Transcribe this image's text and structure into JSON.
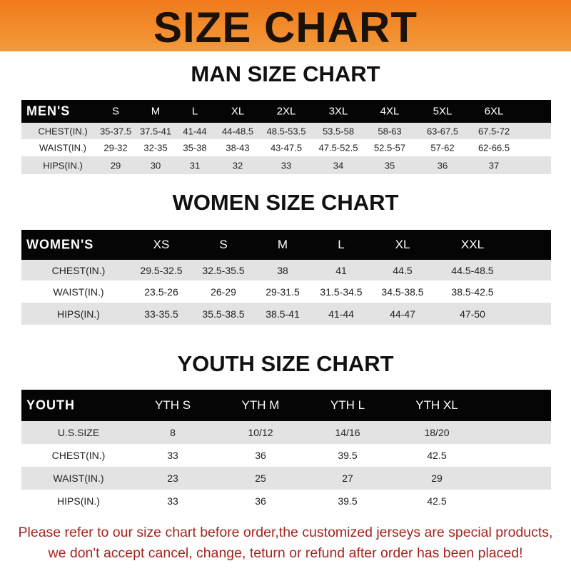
{
  "banner_title": "SIZE CHART",
  "colors": {
    "banner": "#f07a1c",
    "header_bar": "#050505",
    "row_gray": "#e3e3e3",
    "footer_text": "#a8231f"
  },
  "men": {
    "title": "MAN SIZE CHART",
    "header_label": "MEN'S",
    "sizes": [
      "S",
      "M",
      "L",
      "XL",
      "2XL",
      "3XL",
      "4XL",
      "5XL",
      "6XL"
    ],
    "rows": [
      {
        "label": "CHEST(IN.)",
        "values": [
          "35-37.5",
          "37.5-41",
          "41-44",
          "44-48.5",
          "48.5-53.5",
          "53.5-58",
          "58-63",
          "63-67.5",
          "67.5-72"
        ]
      },
      {
        "label": "WAIST(IN.)",
        "values": [
          "29-32",
          "32-35",
          "35-38",
          "38-43",
          "43-47.5",
          "47.5-52.5",
          "52.5-57",
          "57-62",
          "62-66.5"
        ]
      },
      {
        "label": "HIPS(IN.)",
        "values": [
          "29",
          "30",
          "31",
          "32",
          "33",
          "34",
          "35",
          "36",
          "37"
        ]
      }
    ]
  },
  "women": {
    "title": "WOMEN SIZE CHART",
    "header_label": "WOMEN'S",
    "sizes": [
      "XS",
      "S",
      "M",
      "L",
      "XL",
      "XXL"
    ],
    "rows": [
      {
        "label": "CHEST(IN.)",
        "values": [
          "29.5-32.5",
          "32.5-35.5",
          "38",
          "41",
          "44.5",
          "44.5-48.5"
        ]
      },
      {
        "label": "WAIST(IN.)",
        "values": [
          "23.5-26",
          "26-29",
          "29-31.5",
          "31.5-34.5",
          "34.5-38.5",
          "38.5-42.5"
        ]
      },
      {
        "label": "HIPS(IN.)",
        "values": [
          "33-35.5",
          "35.5-38.5",
          "38.5-41",
          "41-44",
          "44-47",
          "47-50"
        ]
      }
    ]
  },
  "youth": {
    "title": "YOUTH SIZE CHART",
    "header_label": "YOUTH",
    "sizes": [
      "YTH S",
      "YTH M",
      "YTH L",
      "YTH XL"
    ],
    "rows": [
      {
        "label": "U.S.SIZE",
        "values": [
          "8",
          "10/12",
          "14/16",
          "18/20"
        ]
      },
      {
        "label": "CHEST(IN.)",
        "values": [
          "33",
          "36",
          "39.5",
          "42.5"
        ]
      },
      {
        "label": "WAIST(IN.)",
        "values": [
          "23",
          "25",
          "27",
          "29"
        ]
      },
      {
        "label": "HIPS(IN.)",
        "values": [
          "33",
          "36",
          "39.5",
          "42.5"
        ]
      }
    ]
  },
  "footer": {
    "line1": "Please refer to our size chart before order,the customized jerseys are special products,",
    "line2": "we don't accept cancel, change, teturn or refund after order has been placed!"
  }
}
